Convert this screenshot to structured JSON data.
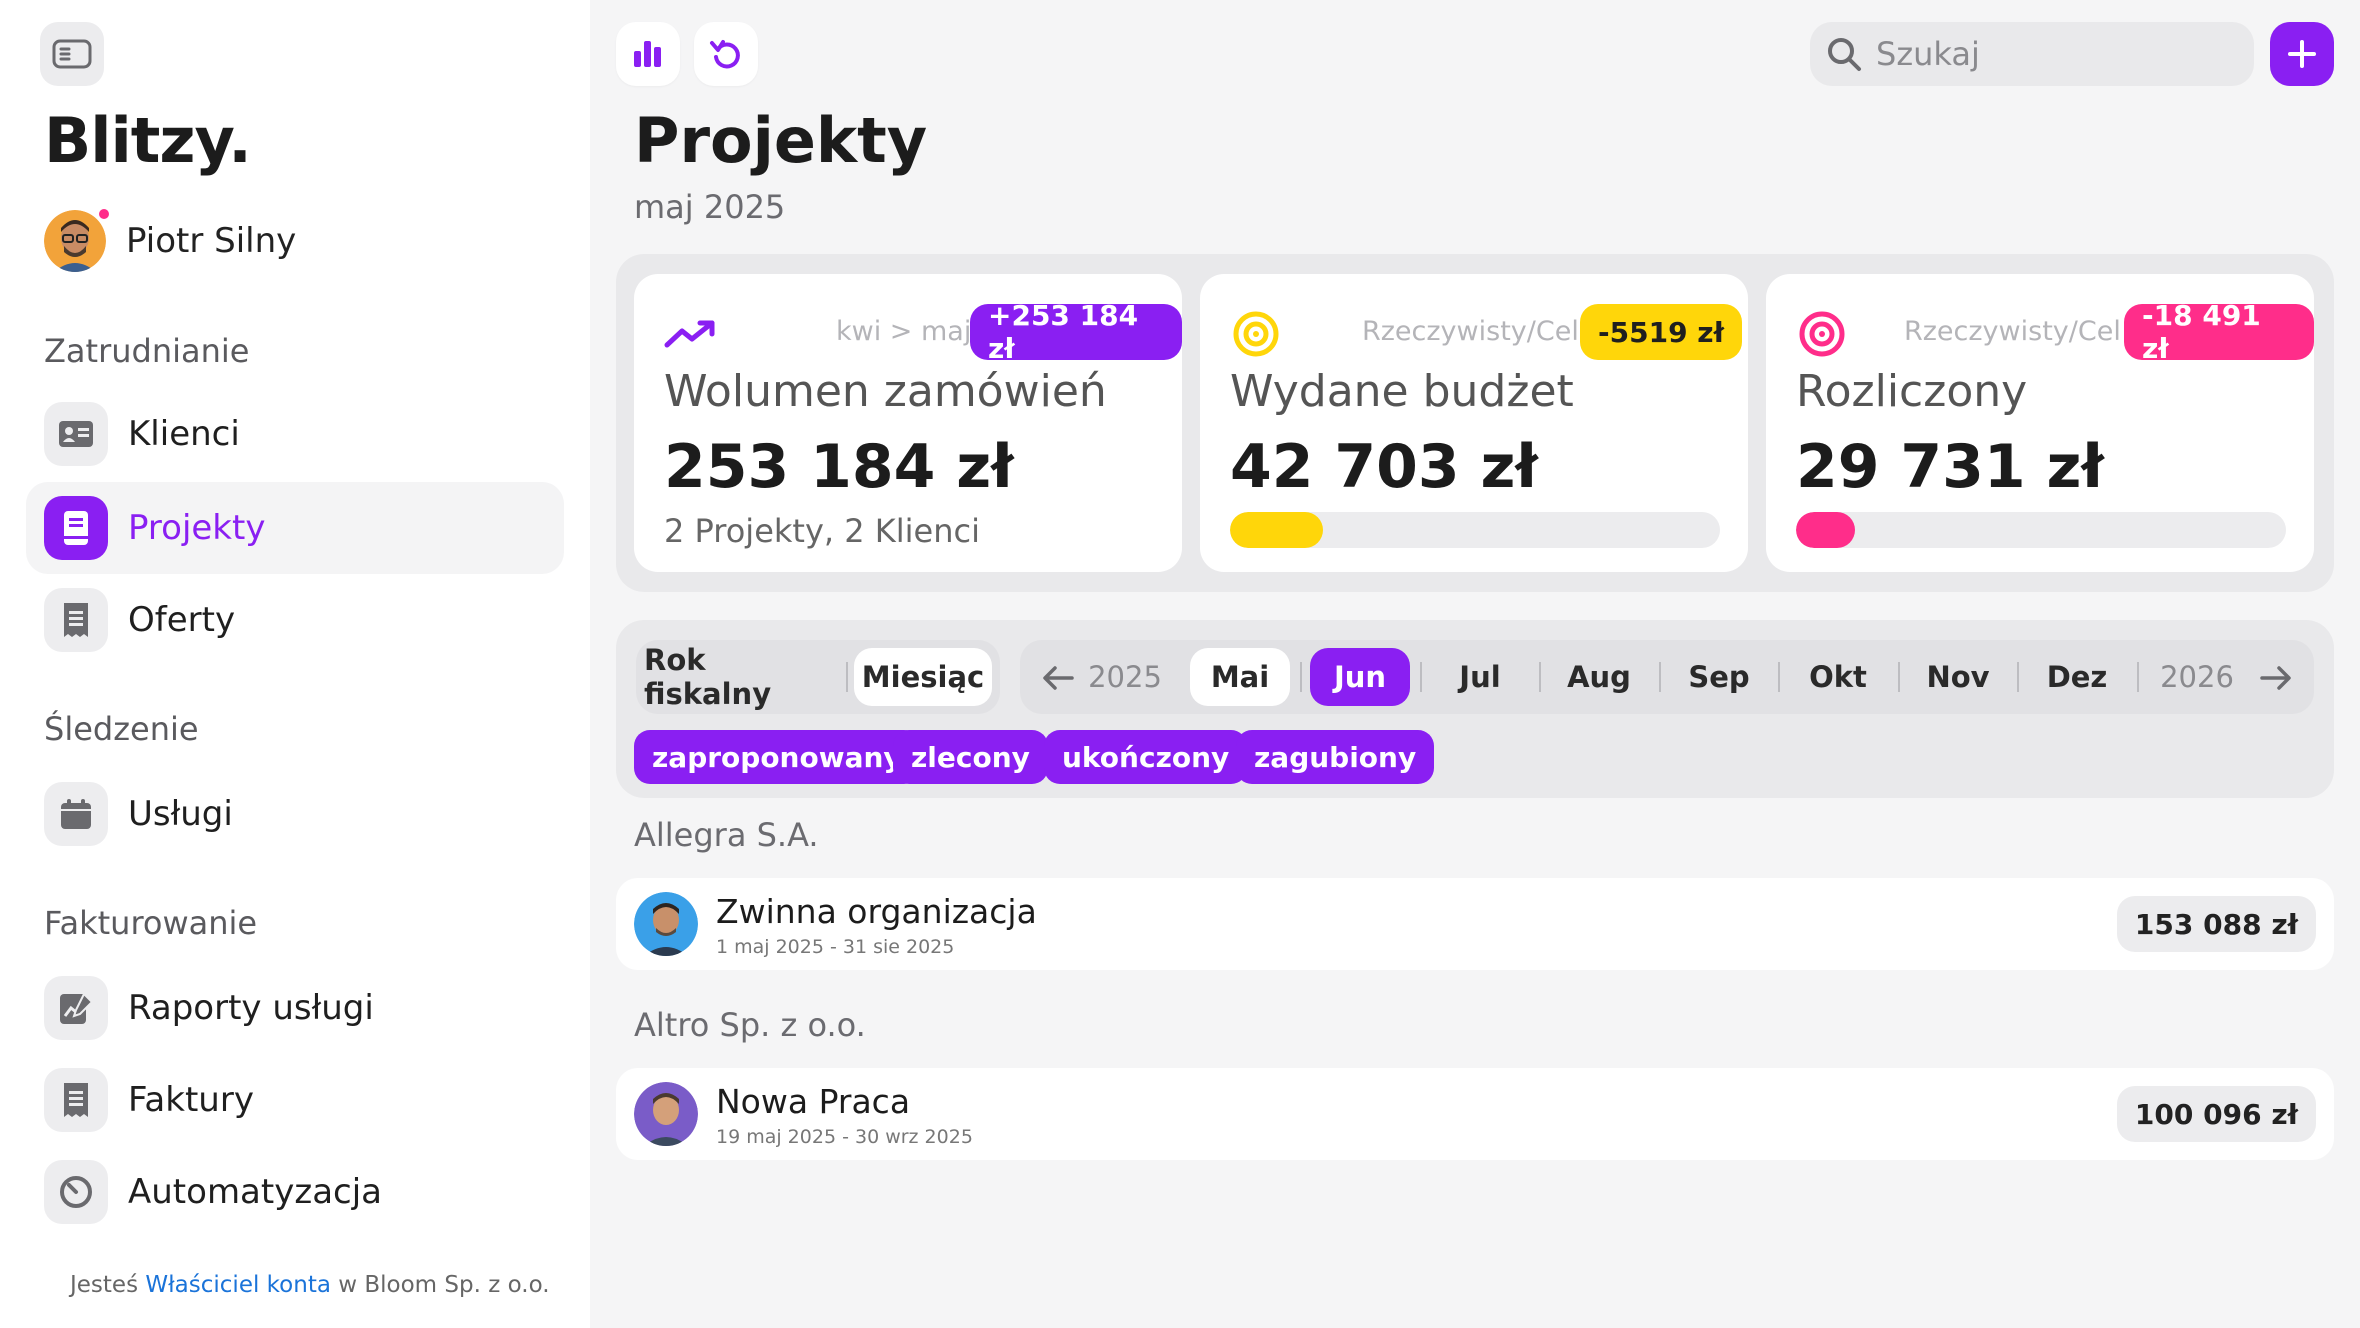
{
  "app": {
    "brand": "Blitzy."
  },
  "user": {
    "name": "Piotr Silny"
  },
  "sidebar": {
    "sections": [
      {
        "label": "Zatrudnianie"
      },
      {
        "label": "Śledzenie"
      },
      {
        "label": "Fakturowanie"
      }
    ],
    "items": [
      {
        "label": "Klienci",
        "icon": "contact-card-icon"
      },
      {
        "label": "Projekty",
        "icon": "notebook-icon",
        "active": true
      },
      {
        "label": "Oferty",
        "icon": "receipt-icon"
      },
      {
        "label": "Usługi",
        "icon": "calendar-icon"
      },
      {
        "label": "Raporty usługi",
        "icon": "report-icon"
      },
      {
        "label": "Faktury",
        "icon": "invoice-icon"
      },
      {
        "label": "Automatyzacja",
        "icon": "timer-icon"
      }
    ],
    "footer": {
      "prefix": "Jesteś ",
      "role": "Właściciel konta",
      "suffix": " w Bloom Sp. z o.o."
    }
  },
  "toolbar": {
    "search_placeholder": "Szukaj",
    "icons": [
      "bar-chart-icon",
      "undo-icon",
      "search-icon",
      "plus-icon"
    ]
  },
  "page": {
    "title": "Projekty",
    "subtitle": "maj 2025"
  },
  "stats": [
    {
      "meta": "kwi > maj",
      "badge": "+253 184 zł",
      "title": "Wolumen zamówień",
      "value": "253 184 zł",
      "note": "2 Projekty, 2 Klienci",
      "icon": "trend-up-icon",
      "color": "#8a1ff2"
    },
    {
      "meta": "Rzeczywisty/Cel",
      "badge": "-5519 zł",
      "title": "Wydane budżet",
      "value": "42 703 zł",
      "progress": 0.19,
      "icon": "target-icon",
      "color": "#ffd60a"
    },
    {
      "meta": "Rzeczywisty/Cel",
      "badge": "-18 491 zł",
      "title": "Rozliczony",
      "value": "29 731 zł",
      "progress": 0.12,
      "icon": "target-icon",
      "color": "#ff2d8a"
    }
  ],
  "filters": {
    "period_modes": [
      {
        "label": "Rok fiskalny"
      },
      {
        "label": "Miesiąc",
        "active": true
      }
    ],
    "months": {
      "prev_year": "2025",
      "next_year": "2026",
      "items": [
        {
          "label": "Mai",
          "state": "current"
        },
        {
          "label": "Jun",
          "state": "selected"
        },
        {
          "label": "Jul"
        },
        {
          "label": "Aug"
        },
        {
          "label": "Sep"
        },
        {
          "label": "Okt"
        },
        {
          "label": "Nov"
        },
        {
          "label": "Dez"
        }
      ]
    },
    "statuses": [
      "zaproponowany",
      "zlecony",
      "ukończony",
      "zagubiony"
    ]
  },
  "groups": [
    {
      "client": "Allegra S.A.",
      "projects": [
        {
          "title": "Zwinna organizacja",
          "dates": "1 maj 2025 - 31 sie 2025",
          "amount": "153 088 zł"
        }
      ]
    },
    {
      "client": "Altro Sp. z o.o.",
      "projects": [
        {
          "title": "Nowa Praca",
          "dates": "19 maj 2025 - 30 wrz 2025",
          "amount": "100 096 zł"
        }
      ]
    }
  ],
  "colors": {
    "accent": "#8a1ff2",
    "yellow": "#ffd60a",
    "pink": "#ff2d8a"
  }
}
